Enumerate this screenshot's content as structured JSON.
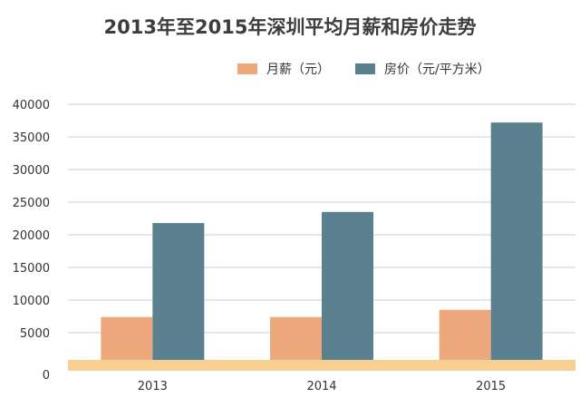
{
  "chart_data": {
    "type": "bar",
    "title": "2013年至2015年深圳平均月薪和房价走势",
    "categories": [
      "2013",
      "2014",
      "2015"
    ],
    "series": [
      {
        "name": "月薪（元）",
        "values": [
          7400,
          7400,
          8500
        ],
        "color": "#EDA97C"
      },
      {
        "name": "房价（元/平方米）",
        "values": [
          21800,
          23500,
          37200
        ],
        "color": "#5B8190"
      }
    ],
    "ylim": [
      0,
      40000
    ],
    "yticks": [
      "0",
      "5000",
      "10000",
      "15000",
      "20000",
      "25000",
      "30000",
      "35000",
      "40000"
    ],
    "xlabel": "",
    "ylabel": "",
    "grid": true,
    "legend_position": "top",
    "baseline_color": "#F8CF92",
    "grid_color": "#CFCFCF"
  }
}
